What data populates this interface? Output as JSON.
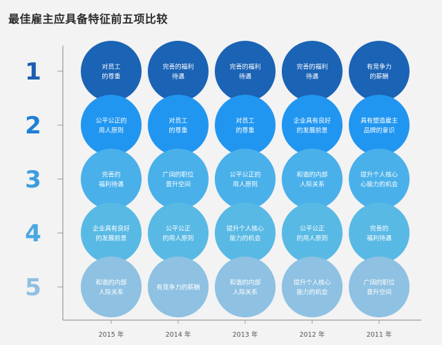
{
  "title": "最佳雇主应具备特征前五项比较",
  "chart_data": {
    "type": "table",
    "title": "最佳雇主应具备特征前五项比较",
    "ranks": [
      "1",
      "2",
      "3",
      "4",
      "5"
    ],
    "years": [
      "2015 年",
      "2014 年",
      "2013 年",
      "2012 年",
      "2011 年"
    ],
    "cells": [
      [
        [
          "对员工",
          "的尊重"
        ],
        [
          "完善的福利",
          "待遇"
        ],
        [
          "完善的福利",
          "待遇"
        ],
        [
          "完善的福利",
          "待遇"
        ],
        [
          "有竞争力",
          "的薪酬"
        ]
      ],
      [
        [
          "公平公正的",
          "用人原则"
        ],
        [
          "对员工",
          "的尊重"
        ],
        [
          "对员工",
          "的尊重"
        ],
        [
          "企业具有良好",
          "的发展前景"
        ],
        [
          "具有塑造雇主",
          "品牌的意识"
        ]
      ],
      [
        [
          "完善的",
          "福利待遇"
        ],
        [
          "广阔的职位",
          "晋升空间"
        ],
        [
          "公平公正的",
          "用人原则"
        ],
        [
          "和谐的内部",
          "人际关系"
        ],
        [
          "提升个人核心",
          "心能力的机会"
        ]
      ],
      [
        [
          "企业具有良好",
          "的发展前景"
        ],
        [
          "公平公正",
          "的用人原则"
        ],
        [
          "提升个人核心",
          "能力的机会"
        ],
        [
          "公平公正",
          "的用人原则"
        ],
        [
          "完善的",
          "福利待遇"
        ]
      ],
      [
        [
          "和谐的内部",
          "人际关系"
        ],
        [
          "有竞争力的薪酬"
        ],
        [
          "和谐的内部",
          "人际关系"
        ],
        [
          "提升个人核心",
          "能力的机会"
        ],
        [
          "广阔的职位",
          "晋升空间"
        ]
      ]
    ],
    "row_colors": [
      "#1a63b5",
      "#2196f0",
      "#49b0ea",
      "#58b9e4",
      "#8ec1e2"
    ],
    "rank_colors": [
      "#1a5fb0",
      "#1f7fd6",
      "#3d9de0",
      "#4aa8df",
      "#8fc0e0"
    ],
    "axis_color": "#9a9a9a"
  }
}
